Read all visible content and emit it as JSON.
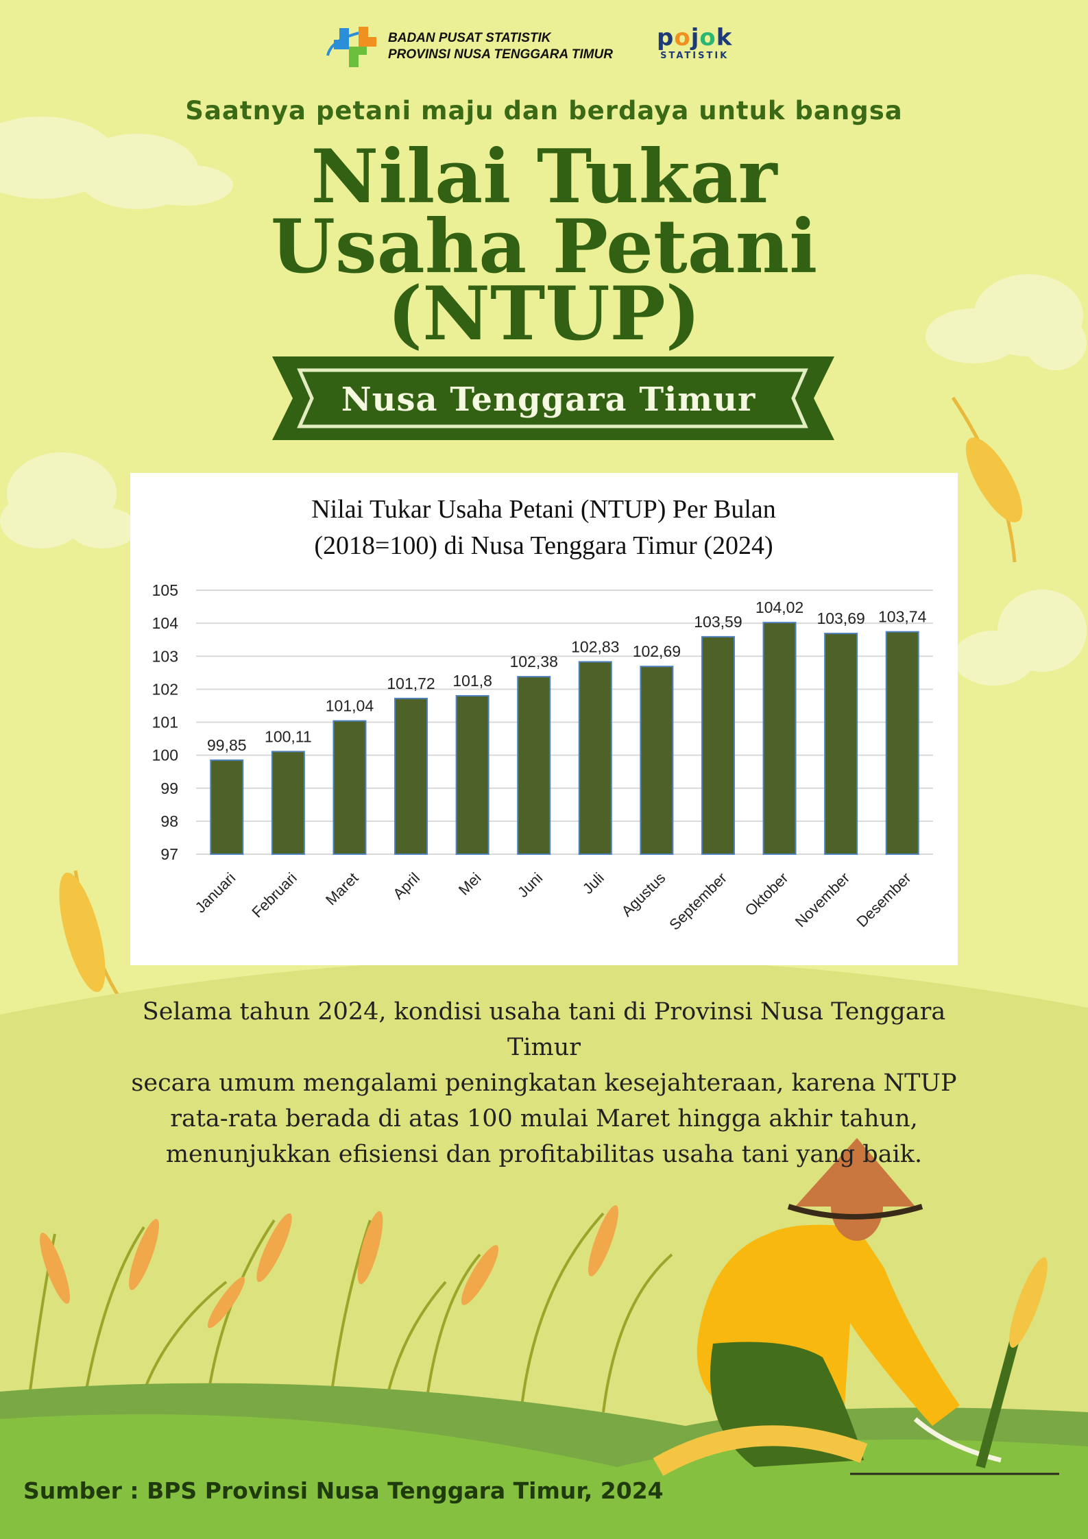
{
  "header": {
    "org_line1": "BADAN PUSAT STATISTIK",
    "org_line2": "PROVINSI NUSA TENGGARA TIMUR",
    "pojok_word": "pojok",
    "pojok_sub": "STATISTIK"
  },
  "tagline": "Saatnya petani maju dan berdaya untuk bangsa",
  "title": {
    "line1": "Nilai Tukar",
    "line2": "Usaha Petani",
    "line3": "(NTUP)"
  },
  "banner": "Nusa Tenggara Timur",
  "colors": {
    "background": "#ebf096",
    "title_green": "#336114",
    "bar_fill": "#4e6128",
    "bar_edge": "#4f81bd",
    "ground": "#86c041"
  },
  "chart_data": {
    "type": "bar",
    "title_line1": "Nilai Tukar Usaha Petani (NTUP) Per Bulan",
    "title_line2": "(2018=100) di Nusa Tenggara Timur (2024)",
    "xlabel": "",
    "ylabel": "",
    "ylim": [
      97,
      105
    ],
    "yticks": [
      "97",
      "98",
      "99",
      "100",
      "101",
      "102",
      "103",
      "104",
      "105"
    ],
    "grid": true,
    "categories": [
      "Januari",
      "Februari",
      "Maret",
      "April",
      "Mei",
      "Juni",
      "Juli",
      "Agustus",
      "September",
      "Oktober",
      "November",
      "Desember"
    ],
    "values": [
      99.85,
      100.11,
      101.04,
      101.72,
      101.8,
      102.38,
      102.83,
      102.69,
      103.59,
      104.02,
      103.69,
      103.74
    ],
    "data_labels": [
      "99,85",
      "100,11",
      "101,04",
      "101,72",
      "101,8",
      "102,38",
      "102,83",
      "102,69",
      "103,59",
      "104,02",
      "103,69",
      "103,74"
    ]
  },
  "paragraph": {
    "line1": "Selama tahun 2024, kondisi usaha tani di Provinsi Nusa Tenggara Timur",
    "line2": "secara umum mengalami peningkatan kesejahteraan, karena NTUP",
    "line3": "rata-rata berada di atas 100 mulai Maret hingga akhir tahun,",
    "line4": "menunjukkan efisiensi dan profitabilitas usaha tani yang baik."
  },
  "source": "Sumber : BPS Provinsi Nusa Tenggara Timur, 2024"
}
